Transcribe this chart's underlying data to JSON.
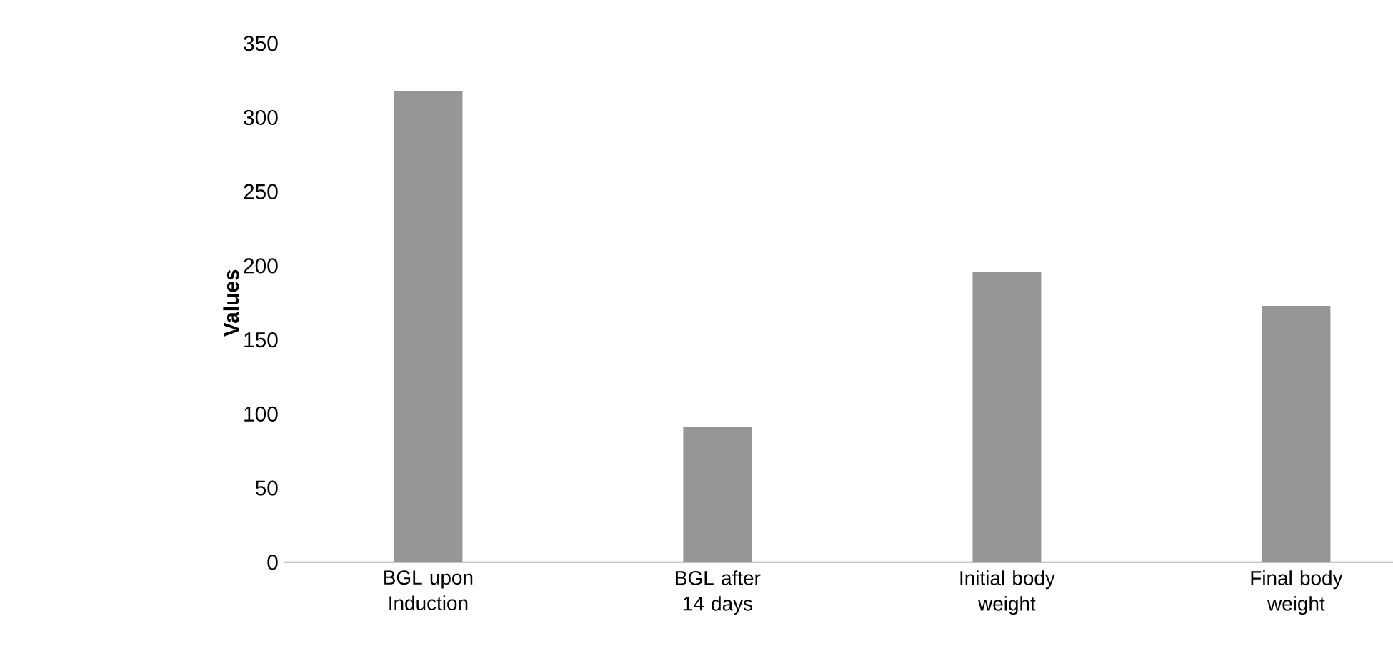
{
  "chart_data": {
    "type": "bar",
    "ylabel": "Values",
    "categories": [
      "BGL upon Induction",
      "BGL after 14 days",
      "Initial body weight",
      "Final body weight"
    ],
    "values": [
      318,
      91,
      196,
      173
    ],
    "color": "#969696",
    "ylim": [
      0,
      350
    ],
    "yticks": [
      0,
      50,
      100,
      150,
      200,
      250,
      300,
      350
    ]
  }
}
